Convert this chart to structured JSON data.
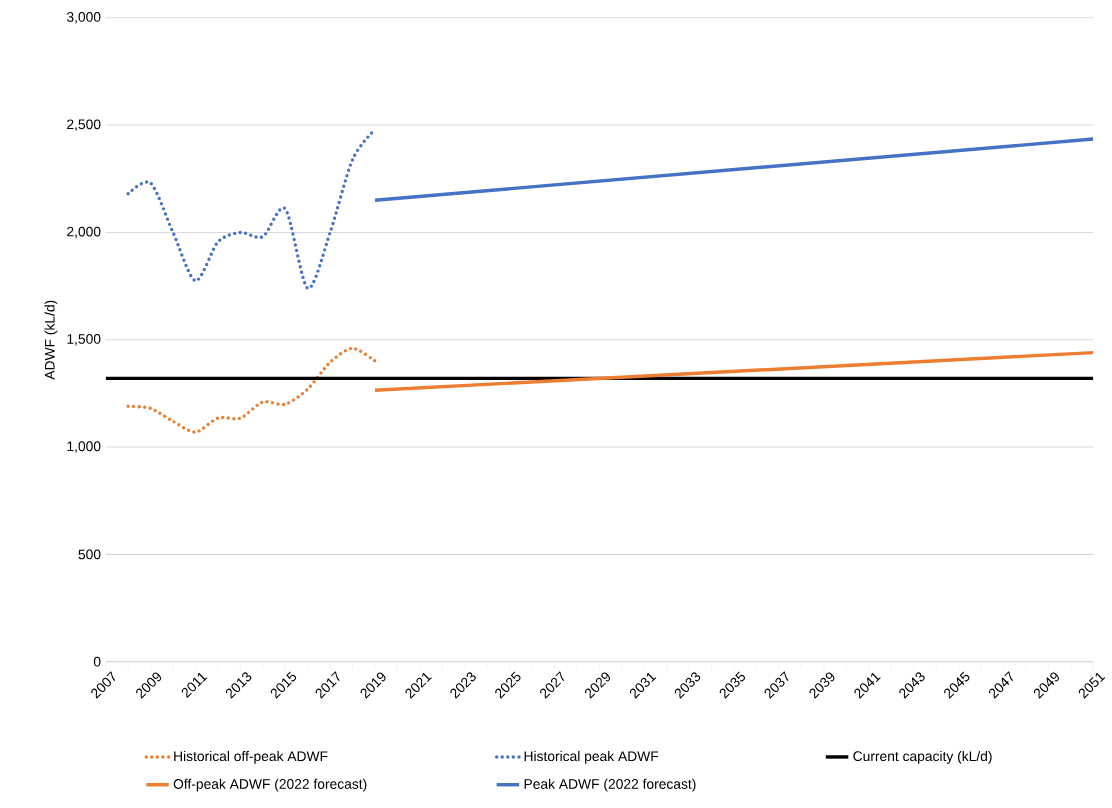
{
  "chart_data": {
    "type": "line",
    "ylabel": "ADWF (kL/d)",
    "xlim": [
      2007,
      2051
    ],
    "xticks": [
      2007,
      2009,
      2011,
      2013,
      2015,
      2017,
      2019,
      2021,
      2023,
      2025,
      2027,
      2029,
      2031,
      2033,
      2035,
      2037,
      2039,
      2041,
      2043,
      2045,
      2047,
      2049,
      2051
    ],
    "ylim": [
      0,
      3000
    ],
    "yticks": [
      0,
      500,
      {
        "value": 1000,
        "label": "1,000"
      },
      {
        "value": 1500,
        "label": "1,500"
      },
      {
        "value": 2000,
        "label": "2,000"
      },
      {
        "value": 2500,
        "label": "2,500"
      },
      {
        "value": 3000,
        "label": "3,000"
      }
    ],
    "grid": "y",
    "legend": "bottom",
    "series": [
      {
        "name": "Historical off-peak ADWF",
        "color": "#ed7d31",
        "line_style": "dotted",
        "x": [
          2008,
          2009,
          2010,
          2011,
          2012,
          2013,
          2014,
          2015,
          2016,
          2017,
          2018,
          2019
        ],
        "values": [
          1190,
          1180,
          1120,
          1070,
          1135,
          1135,
          1210,
          1200,
          1270,
          1395,
          1460,
          1400
        ]
      },
      {
        "name": "Historical peak ADWF",
        "color": "#4472c4",
        "line_style": "dotted",
        "x": [
          2008,
          2009,
          2010,
          2011,
          2012,
          2013,
          2014,
          2015,
          2016,
          2017,
          2018,
          2019
        ],
        "values": [
          2180,
          2230,
          2000,
          1775,
          1955,
          2000,
          1980,
          2110,
          1740,
          2000,
          2340,
          2480
        ]
      },
      {
        "name": "Current capacity (kL/d)",
        "color": "#000000",
        "line_style": "solid",
        "x": [
          2007,
          2051
        ],
        "values": [
          1320,
          1320
        ]
      },
      {
        "name": "Off-peak ADWF (2022 forecast)",
        "color": "#ed7d31",
        "line_style": "solid",
        "x": [
          2019,
          2051
        ],
        "values": [
          1265,
          1440
        ]
      },
      {
        "name": "Peak ADWF (2022 forecast)",
        "color": "#4472c4",
        "line_style": "solid",
        "x": [
          2019,
          2051
        ],
        "values": [
          2150,
          2435
        ]
      }
    ]
  }
}
